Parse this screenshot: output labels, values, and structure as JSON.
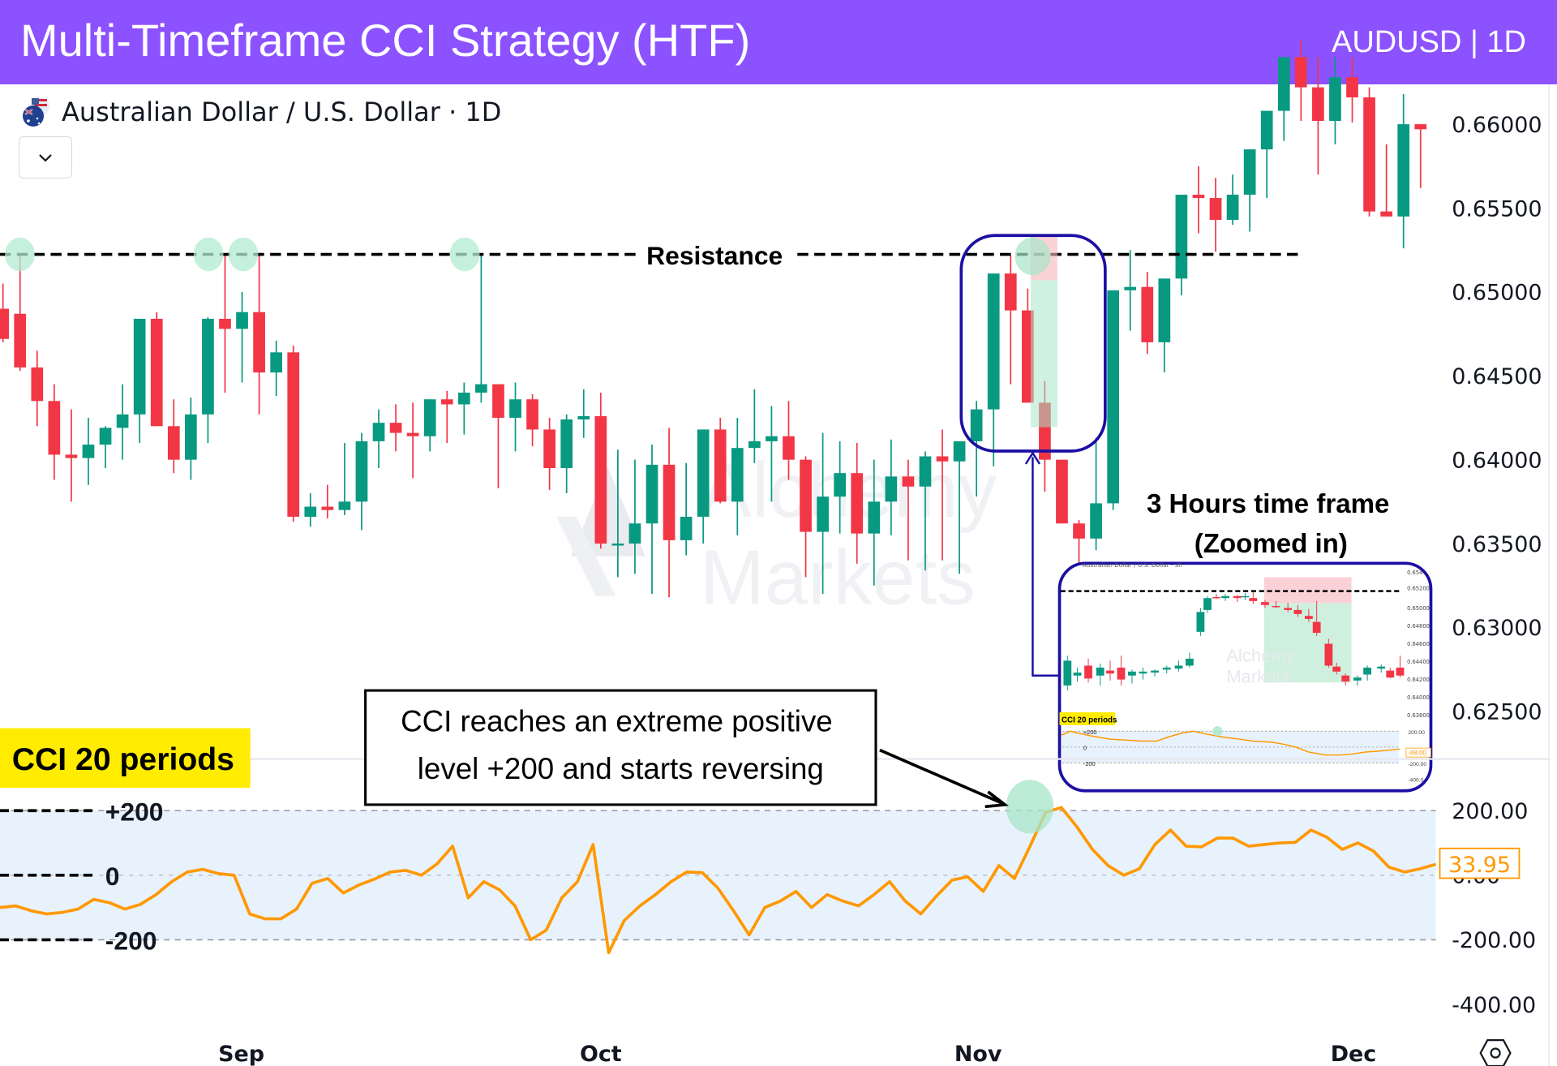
{
  "header": {
    "title": "Multi-Timeframe CCI Strategy (HTF)",
    "tag": "AUDUSD | 1D",
    "bg_color": "#8c52ff"
  },
  "symbol": {
    "name": "Australian Dollar / U.S. Dollar · 1D",
    "flag_icon": "aud-usd-flag-icon",
    "dropdown_icon": "chevron-down-icon"
  },
  "annotations": {
    "resistance_label": "Resistance",
    "htf_title_line1": "3 Hours time frame",
    "htf_title_line2": "(Zoomed in)",
    "callout_line1": "CCI reaches an extreme positive",
    "callout_line2": "level +200 and starts reversing",
    "cci_badge": "CCI 20 periods",
    "level_plus200": "+200",
    "level_zero": "0",
    "level_minus200": "-200",
    "watermark_line1": "Alchemy",
    "watermark_line2": "Markets"
  },
  "inset": {
    "title": "Australian Dollar / U.S. Dollar · 3h",
    "price_ticks": [
      "0.654",
      "0.65200",
      "0.65000",
      "0.64800",
      "0.64600",
      "0.64400",
      "0.64200",
      "0.64000",
      "0.63800"
    ],
    "cci_badge": "CCI 20 periods",
    "cci_ticks": [
      "200.00",
      "0.00",
      "-200.00",
      "-400.0"
    ],
    "cci_last_value": "-68.00",
    "levels": [
      "+200",
      "0",
      "-200"
    ]
  },
  "colors": {
    "up": "#089981",
    "down": "#f23645",
    "cci_line": "#ff9800",
    "cci_band": "#e8f2fd",
    "highlight_circle": "#b2ebd2",
    "annotation_box": "#1b0fa3",
    "badge_yellow": "#ffec00"
  },
  "price_axis": {
    "ticks": [
      "0.66000",
      "0.65500",
      "0.65000",
      "0.64500",
      "0.64000",
      "0.63500",
      "0.63000",
      "0.62500"
    ]
  },
  "cci_axis": {
    "ticks": [
      "200.00",
      "0.00",
      "-200.00",
      "-400.00"
    ],
    "last_value": "33.95"
  },
  "time_axis": {
    "labels": [
      "Sep",
      "Oct",
      "Nov",
      "Dec"
    ],
    "settings_icon": "settings-hexagon-icon"
  },
  "chart_data": [
    {
      "type": "candlestick",
      "title": "Australian Dollar / U.S. Dollar · 1D",
      "symbol": "AUDUSD",
      "timeframe": "1D",
      "ylim": [
        0.6225,
        0.6625
      ],
      "y_ticks": [
        0.66,
        0.655,
        0.65,
        0.645,
        0.64,
        0.635,
        0.63,
        0.625
      ],
      "x_labels": [
        "Sep",
        "Oct",
        "Nov",
        "Dec"
      ],
      "resistance": 0.6522,
      "candles": [
        [
          0.649,
          0.6505,
          0.647,
          0.6472
        ],
        [
          0.6487,
          0.6522,
          0.6453,
          0.6455
        ],
        [
          0.6455,
          0.6465,
          0.642,
          0.6435
        ],
        [
          0.6435,
          0.6445,
          0.6388,
          0.6403
        ],
        [
          0.6403,
          0.643,
          0.6375,
          0.6401
        ],
        [
          0.6401,
          0.6425,
          0.6385,
          0.6409
        ],
        [
          0.6409,
          0.642,
          0.6395,
          0.6419
        ],
        [
          0.6419,
          0.6445,
          0.64,
          0.6427
        ],
        [
          0.6427,
          0.6483,
          0.641,
          0.6484
        ],
        [
          0.6484,
          0.6488,
          0.642,
          0.642
        ],
        [
          0.642,
          0.6436,
          0.6392,
          0.64
        ],
        [
          0.64,
          0.6437,
          0.6388,
          0.6427
        ],
        [
          0.6427,
          0.6485,
          0.641,
          0.6484
        ],
        [
          0.6484,
          0.6522,
          0.644,
          0.6478
        ],
        [
          0.6478,
          0.65,
          0.6446,
          0.6488
        ],
        [
          0.6488,
          0.6522,
          0.6427,
          0.6452
        ],
        [
          0.6452,
          0.6471,
          0.6438,
          0.6464
        ],
        [
          0.6464,
          0.6468,
          0.6363,
          0.6366
        ],
        [
          0.6366,
          0.638,
          0.636,
          0.6372
        ],
        [
          0.6372,
          0.6385,
          0.6365,
          0.637
        ],
        [
          0.637,
          0.641,
          0.6367,
          0.6375
        ],
        [
          0.6375,
          0.6416,
          0.6358,
          0.6411
        ],
        [
          0.6411,
          0.643,
          0.6395,
          0.6422
        ],
        [
          0.6422,
          0.6433,
          0.6405,
          0.6416
        ],
        [
          0.6416,
          0.6434,
          0.6389,
          0.6414
        ],
        [
          0.6414,
          0.6436,
          0.6405,
          0.6436
        ],
        [
          0.6436,
          0.6441,
          0.641,
          0.6433
        ],
        [
          0.6433,
          0.6446,
          0.6415,
          0.644
        ],
        [
          0.644,
          0.6522,
          0.6434,
          0.6445
        ],
        [
          0.6445,
          0.6442,
          0.6383,
          0.6425
        ],
        [
          0.6425,
          0.6446,
          0.6405,
          0.6436
        ],
        [
          0.6436,
          0.6439,
          0.6408,
          0.6418
        ],
        [
          0.6418,
          0.6425,
          0.6382,
          0.6395
        ],
        [
          0.6395,
          0.6427,
          0.638,
          0.6424
        ],
        [
          0.6424,
          0.6442,
          0.6413,
          0.6426
        ],
        [
          0.6426,
          0.644,
          0.6347,
          0.635
        ],
        [
          0.635,
          0.6406,
          0.633,
          0.635
        ],
        [
          0.635,
          0.64,
          0.6332,
          0.6362
        ],
        [
          0.6362,
          0.6409,
          0.632,
          0.6397
        ],
        [
          0.6397,
          0.6419,
          0.6318,
          0.6352
        ],
        [
          0.6352,
          0.6398,
          0.6343,
          0.6366
        ],
        [
          0.6366,
          0.64,
          0.635,
          0.6418
        ],
        [
          0.6418,
          0.6425,
          0.6374,
          0.6375
        ],
        [
          0.6375,
          0.6425,
          0.6355,
          0.6407
        ],
        [
          0.6407,
          0.6442,
          0.6398,
          0.6411
        ],
        [
          0.6411,
          0.6432,
          0.6375,
          0.6414
        ],
        [
          0.6414,
          0.6435,
          0.6388,
          0.64
        ],
        [
          0.64,
          0.6402,
          0.633,
          0.6357
        ],
        [
          0.6357,
          0.6416,
          0.632,
          0.6378
        ],
        [
          0.6378,
          0.6411,
          0.6356,
          0.6392
        ],
        [
          0.6392,
          0.641,
          0.6338,
          0.6356
        ],
        [
          0.6356,
          0.64,
          0.6325,
          0.6375
        ],
        [
          0.6375,
          0.6412,
          0.6355,
          0.639
        ],
        [
          0.639,
          0.64,
          0.634,
          0.6384
        ],
        [
          0.6384,
          0.6405,
          0.6334,
          0.6402
        ],
        [
          0.6402,
          0.6418,
          0.634,
          0.6399
        ],
        [
          0.6399,
          0.6402,
          0.6332,
          0.6411
        ],
        [
          0.6411,
          0.6435,
          0.6378,
          0.643
        ],
        [
          0.643,
          0.6448,
          0.6396,
          0.6511
        ],
        [
          0.6511,
          0.6522,
          0.6445,
          0.6489
        ],
        [
          0.6489,
          0.6502,
          0.6435,
          0.6434
        ],
        [
          0.6434,
          0.6447,
          0.6381,
          0.64
        ],
        [
          0.64,
          0.6398,
          0.6365,
          0.6362
        ],
        [
          0.6362,
          0.6364,
          0.6338,
          0.6353
        ],
        [
          0.6353,
          0.6413,
          0.6346,
          0.6374
        ],
        [
          0.6374,
          0.6501,
          0.637,
          0.6501
        ],
        [
          0.6501,
          0.6525,
          0.6477,
          0.6503
        ],
        [
          0.6503,
          0.6512,
          0.6463,
          0.647
        ],
        [
          0.647,
          0.6507,
          0.6452,
          0.6508
        ],
        [
          0.6508,
          0.6557,
          0.6498,
          0.6558
        ],
        [
          0.6558,
          0.6575,
          0.6535,
          0.6556
        ],
        [
          0.6556,
          0.6568,
          0.6524,
          0.6543
        ],
        [
          0.6543,
          0.657,
          0.654,
          0.6558
        ],
        [
          0.6558,
          0.6585,
          0.6536,
          0.6585
        ],
        [
          0.6585,
          0.6608,
          0.6556,
          0.6608
        ],
        [
          0.6608,
          0.664,
          0.659,
          0.664
        ],
        [
          0.664,
          0.665,
          0.6602,
          0.6622
        ],
        [
          0.6622,
          0.664,
          0.657,
          0.6602
        ],
        [
          0.6602,
          0.664,
          0.6588,
          0.6628
        ],
        [
          0.6628,
          0.664,
          0.6601,
          0.6616
        ],
        [
          0.6616,
          0.6622,
          0.6545,
          0.6548
        ],
        [
          0.6548,
          0.6588,
          0.6548,
          0.6545
        ],
        [
          0.6545,
          0.6618,
          0.6526,
          0.66
        ],
        [
          0.66,
          0.66,
          0.6562,
          0.6597
        ]
      ]
    },
    {
      "type": "line",
      "title": "CCI 20 periods",
      "ylim": [
        -430,
        260
      ],
      "y_ticks": [
        200,
        0,
        -200,
        -400
      ],
      "levels": [
        200,
        0,
        -200
      ],
      "last_value": 33.95,
      "values": [
        -100,
        -95,
        -110,
        -120,
        -115,
        -105,
        -75,
        -85,
        -105,
        -90,
        -60,
        -20,
        10,
        18,
        5,
        0,
        -120,
        -135,
        -135,
        -105,
        -25,
        -10,
        -55,
        -30,
        -12,
        10,
        15,
        0,
        35,
        90,
        -70,
        -20,
        -45,
        -95,
        -200,
        -170,
        -70,
        -20,
        95,
        -240,
        -140,
        -95,
        -60,
        -20,
        10,
        8,
        -40,
        -110,
        -185,
        -100,
        -80,
        -50,
        -100,
        -60,
        -80,
        -95,
        -60,
        -20,
        -80,
        -120,
        -65,
        -15,
        -5,
        -50,
        30,
        -10,
        90,
        195,
        210,
        150,
        80,
        30,
        0,
        20,
        95,
        140,
        90,
        88,
        115,
        115,
        90,
        95,
        100,
        102,
        140,
        118,
        80,
        100,
        75,
        25,
        10,
        20,
        33.95
      ]
    },
    {
      "type": "candlestick",
      "title": "3 Hours time frame (Zoomed in)",
      "ylim": [
        0.6378,
        0.6545
      ],
      "resistance": 0.652,
      "note": "inset shows price approaching 0.652 resistance and dropping to ~0.642; CCI peaks at +200 then falls to -68.00"
    }
  ]
}
